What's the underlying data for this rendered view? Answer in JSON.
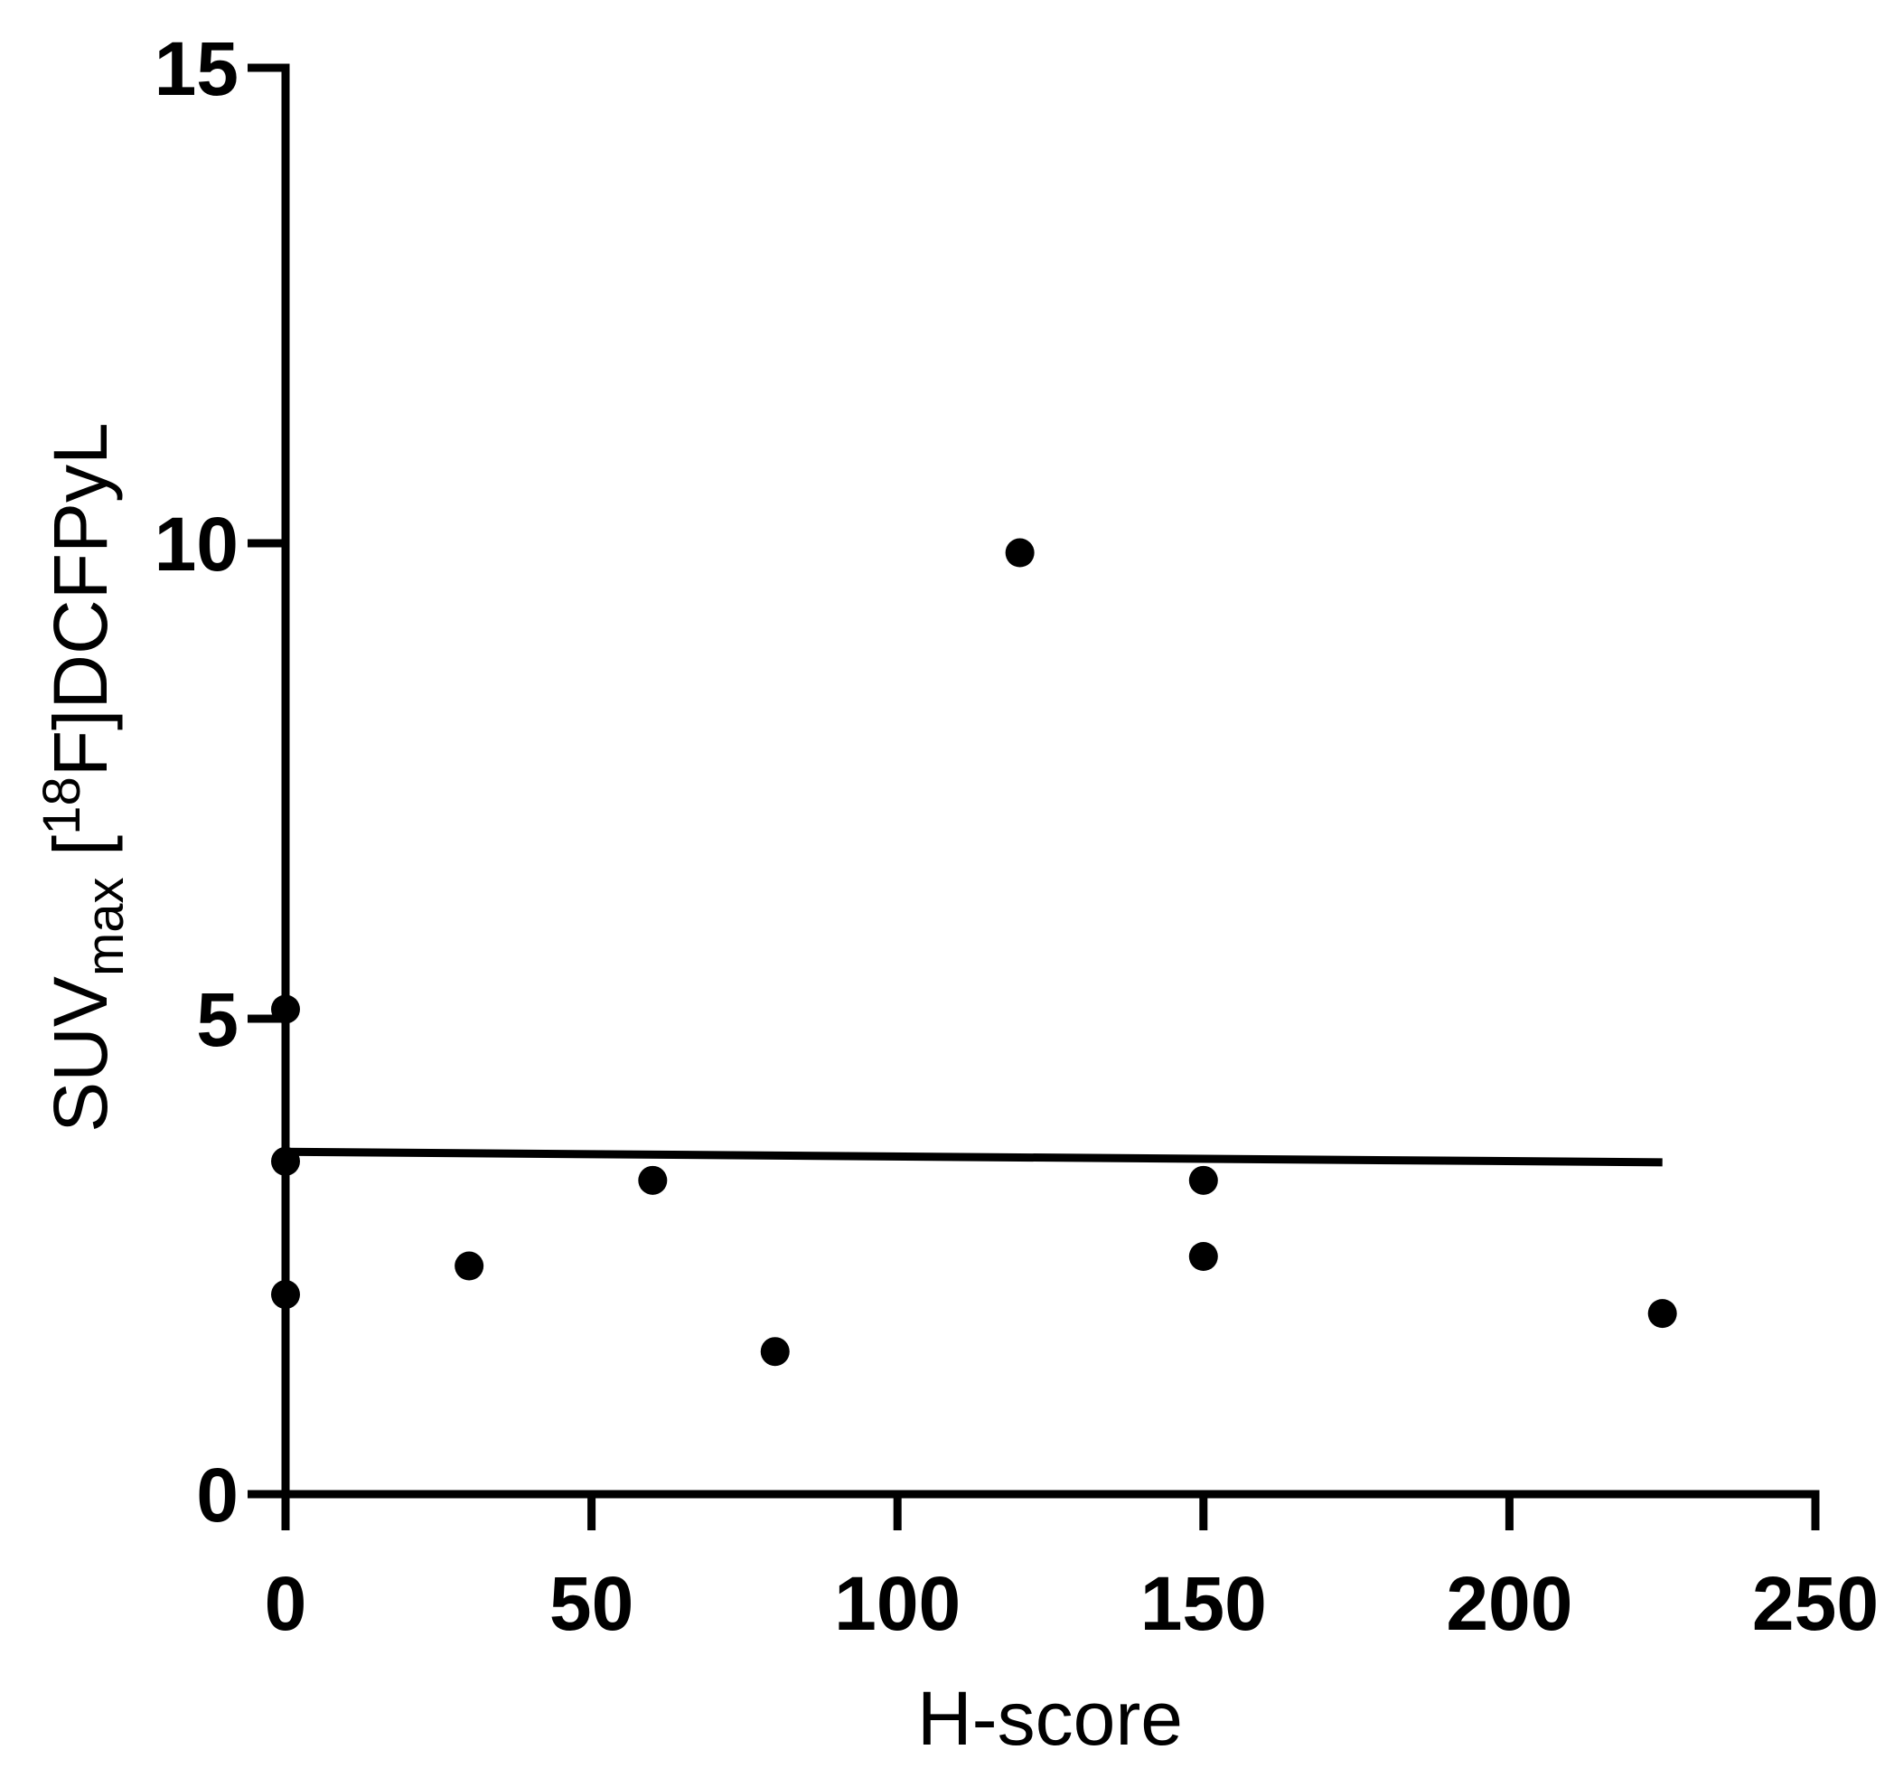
{
  "chart_data": {
    "type": "scatter",
    "x_label": "H-score",
    "y_label": {
      "main": "SUV",
      "subscript": "max",
      "bracket": " [",
      "superscript": "18",
      "rest": "F]DCFPyL"
    },
    "x": [
      0,
      0,
      0,
      30,
      60,
      80,
      120,
      150,
      150,
      225
    ],
    "values": [
      5.1,
      3.5,
      2.1,
      2.4,
      3.3,
      1.5,
      9.9,
      3.3,
      2.5,
      1.9
    ],
    "color": "#000000",
    "fit_line": {
      "x": [
        0,
        225
      ],
      "values": [
        3.6,
        3.49
      ]
    },
    "xlim": [
      0,
      250
    ],
    "xticks": [
      0,
      50,
      100,
      150,
      200,
      250
    ],
    "ylim": [
      0,
      15
    ],
    "yticks": [
      0,
      5,
      10,
      15
    ],
    "grid": false
  }
}
